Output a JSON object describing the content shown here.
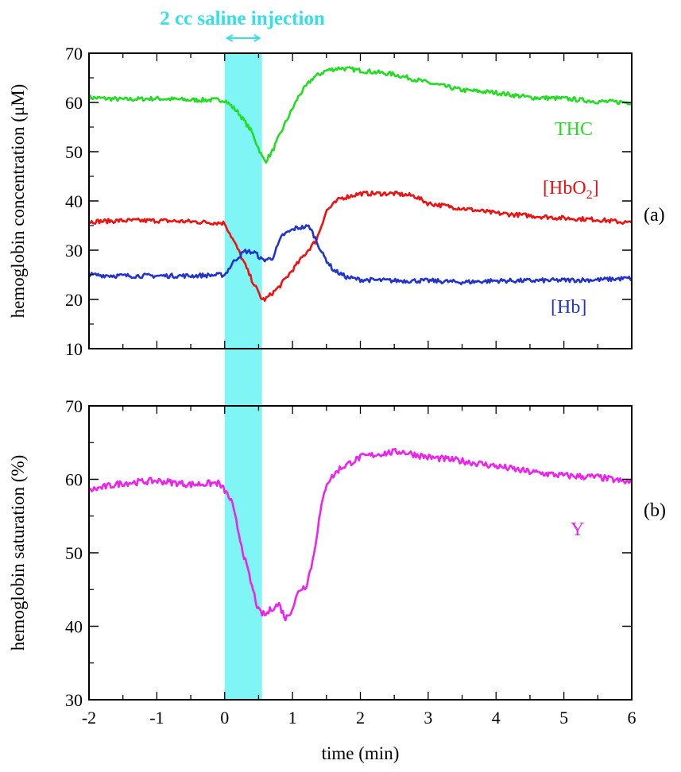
{
  "injection": {
    "label": "2 cc saline injection",
    "start_min": 0,
    "end_min": 0.55,
    "color": "#7ff5f5",
    "label_color": "#33e0e8"
  },
  "chart_data": [
    {
      "type": "line",
      "panel_label": "(a)",
      "xlabel": "",
      "ylabel": "hemoglobin concentration (μM)",
      "xlim": [
        -2,
        6
      ],
      "ylim": [
        10,
        70
      ],
      "yticks": [
        10,
        20,
        30,
        40,
        50,
        60,
        70
      ],
      "grid": false,
      "series": [
        {
          "name": "THC",
          "color": "#22dd22",
          "x": [
            -2,
            -1.5,
            -1,
            -0.5,
            0,
            0.2,
            0.4,
            0.55,
            0.6,
            0.7,
            0.9,
            1.1,
            1.3,
            1.5,
            1.7,
            2,
            2.5,
            3,
            3.5,
            4,
            4.5,
            5,
            5.5,
            6
          ],
          "values": [
            61,
            60.6,
            60.8,
            60.5,
            60.5,
            58,
            54,
            49,
            48,
            50,
            56,
            61.5,
            65,
            66.5,
            67,
            66.5,
            65.7,
            64,
            62.5,
            62,
            61,
            60.8,
            60.2,
            60
          ]
        },
        {
          "name": "[HbO2]",
          "color": "#ee1111",
          "x": [
            -2,
            -1.5,
            -1,
            -0.5,
            0,
            0.2,
            0.4,
            0.55,
            0.6,
            0.8,
            1,
            1.2,
            1.35,
            1.5,
            1.7,
            2,
            2.5,
            2.8,
            3,
            3.5,
            4,
            4.5,
            5,
            5.5,
            6
          ],
          "values": [
            35.8,
            36,
            36,
            35.8,
            35.5,
            30,
            24,
            20,
            20,
            22.5,
            26,
            29.5,
            32,
            38,
            40.5,
            41.5,
            41.5,
            41,
            39.5,
            38.5,
            37.5,
            37,
            36.5,
            36.2,
            35.5
          ]
        },
        {
          "name": "[Hb]",
          "color": "#2233cc",
          "x": [
            -2,
            -1.5,
            -1,
            -0.5,
            0,
            0.15,
            0.3,
            0.45,
            0.55,
            0.7,
            0.85,
            1.05,
            1.25,
            1.35,
            1.45,
            1.6,
            1.8,
            2,
            2.5,
            3,
            3.5,
            4,
            4.5,
            5,
            5.5,
            6
          ],
          "values": [
            25,
            24.8,
            24.8,
            24.8,
            25,
            28,
            29.8,
            29.5,
            28,
            28.3,
            33,
            34.5,
            34.8,
            32,
            29,
            26,
            24.5,
            24,
            23.8,
            23.8,
            23.5,
            23.8,
            23.8,
            23.9,
            24,
            24.3
          ]
        }
      ],
      "labels": {
        "thc": "THC",
        "hbo2_main": "[HbO",
        "hbo2_sub": "2",
        "hbo2_end": "]",
        "hb": "[Hb]"
      }
    },
    {
      "type": "line",
      "panel_label": "(b)",
      "xlabel": "time (min)",
      "ylabel": "hemoglobin saturation (%)",
      "xlim": [
        -2,
        6
      ],
      "ylim": [
        30,
        70
      ],
      "xticks": [
        "-2",
        "-1",
        "0",
        "1",
        "2",
        "3",
        "4",
        "5",
        "6"
      ],
      "yticks": [
        30,
        40,
        50,
        60,
        70
      ],
      "grid": false,
      "series": [
        {
          "name": "Y",
          "color": "#ee22ee",
          "x": [
            -2,
            -1.5,
            -1,
            -0.5,
            -0.1,
            0,
            0.1,
            0.2,
            0.3,
            0.4,
            0.5,
            0.6,
            0.7,
            0.8,
            0.9,
            1,
            1.1,
            1.2,
            1.3,
            1.4,
            1.5,
            1.7,
            2,
            2.3,
            2.6,
            3,
            3.5,
            4,
            4.5,
            5,
            5.5,
            6
          ],
          "values": [
            58.5,
            59.5,
            59.8,
            59.3,
            59.5,
            58.5,
            57,
            53,
            49,
            45.5,
            42,
            41.5,
            42.5,
            43,
            41,
            42.5,
            45,
            45.5,
            49,
            55,
            59.5,
            61.5,
            63,
            63.5,
            63.8,
            63,
            62.5,
            61.8,
            61,
            60.5,
            60.3,
            59.5
          ]
        }
      ],
      "labels": {
        "y": "Y"
      }
    }
  ]
}
